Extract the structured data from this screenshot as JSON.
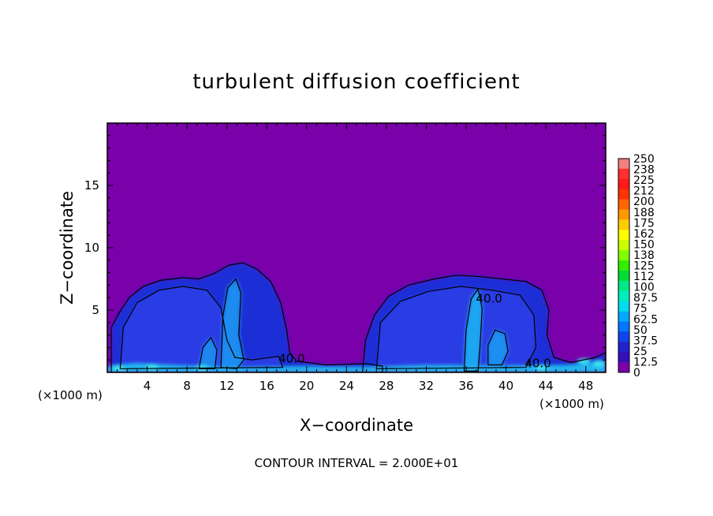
{
  "chart_data": {
    "type": "heatmap",
    "title": "turbulent diffusion coefficient",
    "xlabel": "X−coordinate",
    "ylabel": "Z−coordinate",
    "x_unit": "(×1000 m)",
    "y_unit": "(×1000 m)",
    "xlim": [
      0,
      50
    ],
    "ylim": [
      0,
      20
    ],
    "x_ticks": [
      4,
      8,
      12,
      16,
      20,
      24,
      28,
      32,
      36,
      40,
      44,
      48
    ],
    "y_ticks": [
      5,
      10,
      15
    ],
    "colorbar": {
      "labels": [
        "250",
        "238",
        "225",
        "212",
        "200",
        "188",
        "175",
        "162",
        "150",
        "138",
        "125",
        "112",
        "100",
        "87.5",
        "75",
        "62.5",
        "50",
        "37.5",
        "25",
        "12.5",
        "0"
      ],
      "colors": [
        "#f08080",
        "#ff3030",
        "#ff1a1a",
        "#ff3300",
        "#ff6600",
        "#ff9900",
        "#ffcc00",
        "#ffff00",
        "#ccff00",
        "#80ff00",
        "#33ee00",
        "#00dd33",
        "#00e888",
        "#00eebb",
        "#00ddee",
        "#00aaff",
        "#0077ff",
        "#1144ee",
        "#2222cc",
        "#3311bb",
        "#7a00aa"
      ]
    },
    "contour_labels": [
      {
        "text": "40.0",
        "x": 18.5,
        "y": 0.8
      },
      {
        "text": "40.0",
        "x": 38.3,
        "y": 5.6
      },
      {
        "text": "40.0",
        "x": 43.2,
        "y": 0.4
      }
    ],
    "regions": [
      {
        "name": "cloud-left",
        "x_range": [
          0.5,
          18
        ],
        "z_max": 8.8,
        "level": 25
      },
      {
        "name": "cloud-right",
        "x_range": [
          26,
          44
        ],
        "z_max": 7.8,
        "level": 25
      }
    ],
    "contour_interval": "CONTOUR INTERVAL = 2.000E+01"
  }
}
